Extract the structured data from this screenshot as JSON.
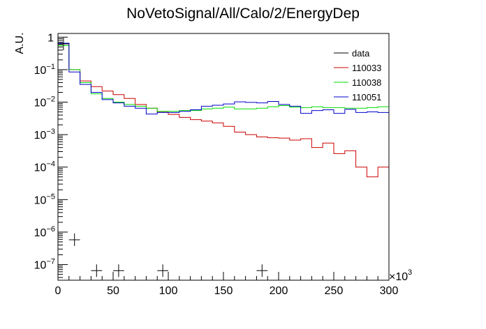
{
  "chart_data": {
    "type": "line",
    "title": "NoVetoSignal/All/Calo/2/EnergyDep",
    "ylabel": "A.U.",
    "xlabel": "",
    "x_multiplier_label": "×10",
    "x_multiplier_exp": "3",
    "xlim": [
      0,
      300
    ],
    "ylim": [
      3.3e-08,
      1.3
    ],
    "ylog": true,
    "grid": false,
    "legend_position": "top-right",
    "x_ticks": [
      {
        "value": 0,
        "label": "0"
      },
      {
        "value": 50,
        "label": "50"
      },
      {
        "value": 100,
        "label": "100"
      },
      {
        "value": 150,
        "label": "150"
      },
      {
        "value": 200,
        "label": "200"
      },
      {
        "value": 250,
        "label": "250"
      },
      {
        "value": 300,
        "label": "300"
      }
    ],
    "y_ticks": [
      {
        "value": 1e-07,
        "base": "10",
        "exp": "−7"
      },
      {
        "value": 1e-06,
        "base": "10",
        "exp": "−6"
      },
      {
        "value": 1e-05,
        "base": "10",
        "exp": "−5"
      },
      {
        "value": 0.0001,
        "base": "10",
        "exp": "−4"
      },
      {
        "value": 0.001,
        "base": "10",
        "exp": "−3"
      },
      {
        "value": 0.01,
        "base": "10",
        "exp": "−2"
      },
      {
        "value": 0.1,
        "base": "10",
        "exp": "−1"
      },
      {
        "value": 1,
        "base": "1",
        "exp": ""
      }
    ],
    "bin_edges": [
      0,
      10,
      20,
      30,
      40,
      50,
      60,
      70,
      80,
      90,
      100,
      110,
      120,
      130,
      140,
      150,
      160,
      170,
      180,
      190,
      200,
      210,
      220,
      230,
      240,
      250,
      260,
      270,
      280,
      290,
      300
    ],
    "series": [
      {
        "name": "data",
        "color": "#000000",
        "style": "points",
        "x": [
          5,
          15,
          35,
          55,
          95,
          185
        ],
        "y": [
          0.62,
          5.8e-07,
          6.5e-08,
          6.5e-08,
          6.5e-08,
          6.5e-08
        ],
        "xerr": 5
      },
      {
        "name": "110033",
        "color": "#cc0000",
        "style": "hist",
        "values": [
          0.65,
          0.1,
          0.045,
          0.03,
          0.022,
          0.017,
          0.013,
          0.0085,
          0.0065,
          0.0049,
          0.0042,
          0.0034,
          0.0029,
          0.0026,
          0.0023,
          0.0018,
          0.0012,
          0.001,
          0.00085,
          0.0008,
          0.00078,
          0.00068,
          0.00075,
          0.0004,
          0.00055,
          0.00026,
          0.00032,
          0.0001,
          5e-05,
          0.0001
        ]
      },
      {
        "name": "110038",
        "color": "#00dd00",
        "style": "hist",
        "values": [
          0.55,
          0.1,
          0.04,
          0.018,
          0.013,
          0.01,
          0.0085,
          0.0075,
          0.0065,
          0.0052,
          0.0052,
          0.0055,
          0.0055,
          0.0062,
          0.0065,
          0.007,
          0.0062,
          0.0062,
          0.0065,
          0.0072,
          0.0078,
          0.007,
          0.0068,
          0.0072,
          0.0068,
          0.0068,
          0.0065,
          0.0065,
          0.0068,
          0.0072
        ]
      },
      {
        "name": "110051",
        "color": "#0000cc",
        "style": "hist",
        "values": [
          0.65,
          0.085,
          0.035,
          0.02,
          0.012,
          0.0095,
          0.0075,
          0.0065,
          0.0043,
          0.0048,
          0.0048,
          0.0052,
          0.0058,
          0.0075,
          0.008,
          0.0088,
          0.0102,
          0.0098,
          0.0095,
          0.0105,
          0.0085,
          0.0075,
          0.0045,
          0.0055,
          0.0058,
          0.0045,
          0.006,
          0.0048,
          0.005,
          0.0048
        ]
      }
    ]
  }
}
